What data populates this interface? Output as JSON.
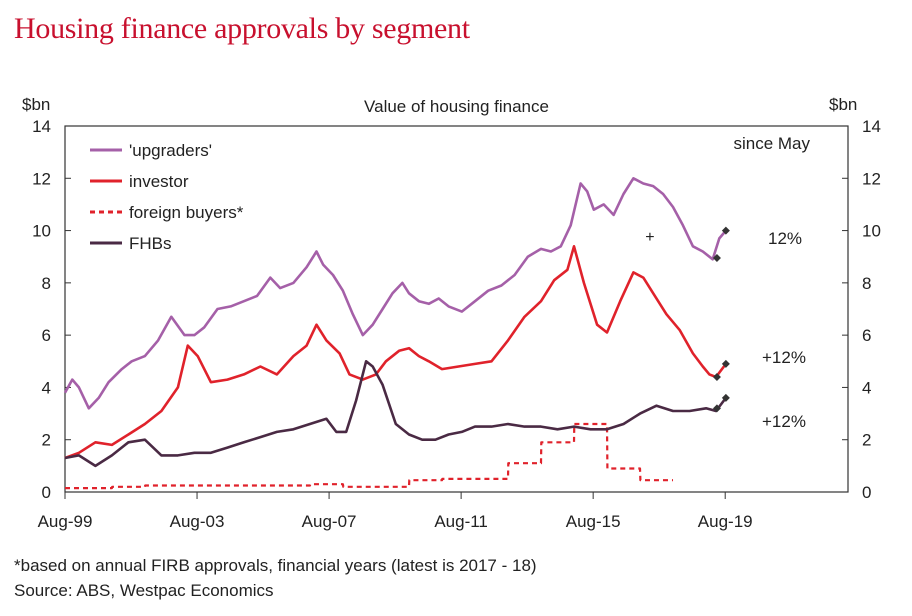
{
  "title": "Housing finance approvals by segment",
  "footnote": "*based on annual FIRB approvals, financial years (latest is 2017 - 18)",
  "source": "Source: ABS, Westpac Economics",
  "chart_data": {
    "type": "line",
    "subtitle": "Value of housing finance",
    "ylabel_left": "$bn",
    "ylabel_right": "$bn",
    "ylim": [
      0,
      14
    ],
    "yticks": [
      0,
      2,
      4,
      6,
      8,
      10,
      12,
      14
    ],
    "xlim": [
      1999.58,
      2023.3
    ],
    "xticks": [
      {
        "x": 1999.58,
        "label": "Aug-99"
      },
      {
        "x": 2003.58,
        "label": "Aug-03"
      },
      {
        "x": 2007.58,
        "label": "Aug-07"
      },
      {
        "x": 2011.58,
        "label": "Aug-11"
      },
      {
        "x": 2015.58,
        "label": "Aug-15"
      },
      {
        "x": 2019.58,
        "label": "Aug-19"
      }
    ],
    "grid": false,
    "legend_position": "top-left",
    "annotation_header": "since May",
    "colors": {
      "upgraders": "#a560a8",
      "investor": "#e0222b",
      "foreign": "#e0222b",
      "fhb": "#4a2a44",
      "marker": "#333333"
    },
    "series": [
      {
        "name": "'upgraders'",
        "key": "upgraders",
        "style": "solid",
        "x": [
          1999.58,
          1999.8,
          2000.0,
          2000.3,
          2000.6,
          2000.9,
          2001.3,
          2001.6,
          2002.0,
          2002.4,
          2002.8,
          2003.2,
          2003.5,
          2003.8,
          2004.2,
          2004.6,
          2005.0,
          2005.4,
          2005.8,
          2006.1,
          2006.5,
          2006.9,
          2007.2,
          2007.4,
          2007.7,
          2008.0,
          2008.3,
          2008.6,
          2008.9,
          2009.2,
          2009.5,
          2009.8,
          2010.0,
          2010.3,
          2010.6,
          2010.9,
          2011.2,
          2011.6,
          2012.0,
          2012.4,
          2012.8,
          2013.2,
          2013.6,
          2014.0,
          2014.3,
          2014.6,
          2014.9,
          2015.2,
          2015.4,
          2015.6,
          2015.9,
          2016.2,
          2016.5,
          2016.8,
          2017.1,
          2017.4,
          2017.7,
          2018.0,
          2018.3,
          2018.6,
          2018.9,
          2019.2,
          2019.4,
          2019.6
        ],
        "y": [
          3.8,
          4.3,
          4.0,
          3.2,
          3.6,
          4.2,
          4.7,
          5.0,
          5.2,
          5.8,
          6.7,
          6.0,
          6.0,
          6.3,
          7.0,
          7.1,
          7.3,
          7.5,
          8.2,
          7.8,
          8.0,
          8.6,
          9.2,
          8.7,
          8.3,
          7.7,
          6.8,
          6.0,
          6.4,
          7.0,
          7.6,
          8.0,
          7.6,
          7.3,
          7.2,
          7.4,
          7.1,
          6.9,
          7.3,
          7.7,
          7.9,
          8.3,
          9.0,
          9.3,
          9.2,
          9.4,
          10.2,
          11.8,
          11.5,
          10.8,
          11.0,
          10.6,
          11.4,
          12.0,
          11.8,
          11.7,
          11.4,
          10.9,
          10.2,
          9.4,
          9.2,
          8.9,
          9.7,
          10.0
        ]
      },
      {
        "name": "investor",
        "key": "investor",
        "style": "solid",
        "x": [
          1999.58,
          2000.0,
          2000.5,
          2001.0,
          2001.5,
          2002.0,
          2002.5,
          2003.0,
          2003.3,
          2003.6,
          2004.0,
          2004.5,
          2005.0,
          2005.5,
          2006.0,
          2006.5,
          2006.9,
          2007.2,
          2007.5,
          2007.9,
          2008.2,
          2008.6,
          2009.0,
          2009.3,
          2009.7,
          2010.0,
          2010.3,
          2010.6,
          2011.0,
          2011.5,
          2012.0,
          2012.5,
          2013.0,
          2013.5,
          2014.0,
          2014.4,
          2014.8,
          2015.0,
          2015.3,
          2015.7,
          2016.0,
          2016.4,
          2016.8,
          2017.1,
          2017.4,
          2017.8,
          2018.2,
          2018.6,
          2018.9,
          2019.1,
          2019.3,
          2019.6
        ],
        "y": [
          1.3,
          1.5,
          1.9,
          1.8,
          2.2,
          2.6,
          3.1,
          4.0,
          5.6,
          5.2,
          4.2,
          4.3,
          4.5,
          4.8,
          4.5,
          5.2,
          5.6,
          6.4,
          5.8,
          5.3,
          4.5,
          4.3,
          4.5,
          5.0,
          5.4,
          5.5,
          5.2,
          5.0,
          4.7,
          4.8,
          4.9,
          5.0,
          5.8,
          6.7,
          7.3,
          8.1,
          8.5,
          9.4,
          8.0,
          6.4,
          6.1,
          7.3,
          8.4,
          8.2,
          7.6,
          6.8,
          6.2,
          5.3,
          4.8,
          4.5,
          4.4,
          4.9
        ]
      },
      {
        "name": "foreign buyers*",
        "key": "foreign",
        "style": "dashed",
        "x": [
          1999.58,
          2001.0,
          2001.01,
          2002.0,
          2002.01,
          2007.0,
          2007.01,
          2008.0,
          2008.01,
          2010.0,
          2010.01,
          2011.0,
          2011.01,
          2013.0,
          2013.01,
          2014.0,
          2014.01,
          2015.0,
          2015.01,
          2016.0,
          2016.01,
          2017.0,
          2017.01,
          2018.0
        ],
        "y": [
          0.15,
          0.15,
          0.2,
          0.2,
          0.25,
          0.25,
          0.3,
          0.3,
          0.2,
          0.2,
          0.45,
          0.45,
          0.5,
          0.5,
          1.1,
          1.1,
          1.9,
          1.9,
          2.6,
          2.6,
          0.9,
          0.9,
          0.45,
          0.45
        ]
      },
      {
        "name": "FHBs",
        "key": "fhb",
        "style": "solid",
        "x": [
          1999.58,
          2000.0,
          2000.5,
          2001.0,
          2001.5,
          2002.0,
          2002.5,
          2003.0,
          2003.5,
          2004.0,
          2004.5,
          2005.0,
          2005.5,
          2006.0,
          2006.5,
          2007.0,
          2007.5,
          2007.8,
          2008.1,
          2008.4,
          2008.7,
          2008.9,
          2009.2,
          2009.6,
          2010.0,
          2010.4,
          2010.8,
          2011.2,
          2011.6,
          2012.0,
          2012.5,
          2013.0,
          2013.5,
          2014.0,
          2014.5,
          2015.0,
          2015.5,
          2016.0,
          2016.5,
          2017.0,
          2017.5,
          2018.0,
          2018.5,
          2019.0,
          2019.3,
          2019.6
        ],
        "y": [
          1.3,
          1.4,
          1.0,
          1.4,
          1.9,
          2.0,
          1.4,
          1.4,
          1.5,
          1.5,
          1.7,
          1.9,
          2.1,
          2.3,
          2.4,
          2.6,
          2.8,
          2.3,
          2.3,
          3.5,
          5.0,
          4.8,
          4.1,
          2.6,
          2.2,
          2.0,
          2.0,
          2.2,
          2.3,
          2.5,
          2.5,
          2.6,
          2.5,
          2.5,
          2.4,
          2.5,
          2.4,
          2.4,
          2.6,
          3.0,
          3.3,
          3.1,
          3.1,
          3.2,
          3.1,
          3.6
        ]
      }
    ],
    "annotations": [
      {
        "series": "upgraders",
        "label": "12%"
      },
      {
        "series": "investor",
        "label": "+12%"
      },
      {
        "series": "fhb",
        "label": "+12%"
      }
    ],
    "may_markers": [
      {
        "series": "upgraders",
        "x0": 2019.33,
        "y0": 8.95,
        "x1": 2019.6,
        "y1": 10.0
      },
      {
        "series": "investor",
        "x0": 2019.33,
        "y0": 4.4,
        "x1": 2019.6,
        "y1": 4.9
      },
      {
        "series": "fhb",
        "x0": 2019.33,
        "y0": 3.2,
        "x1": 2019.6,
        "y1": 3.6
      }
    ],
    "stray_mark": {
      "x": 2017.3,
      "y": 9.8,
      "symbol": "+"
    }
  }
}
